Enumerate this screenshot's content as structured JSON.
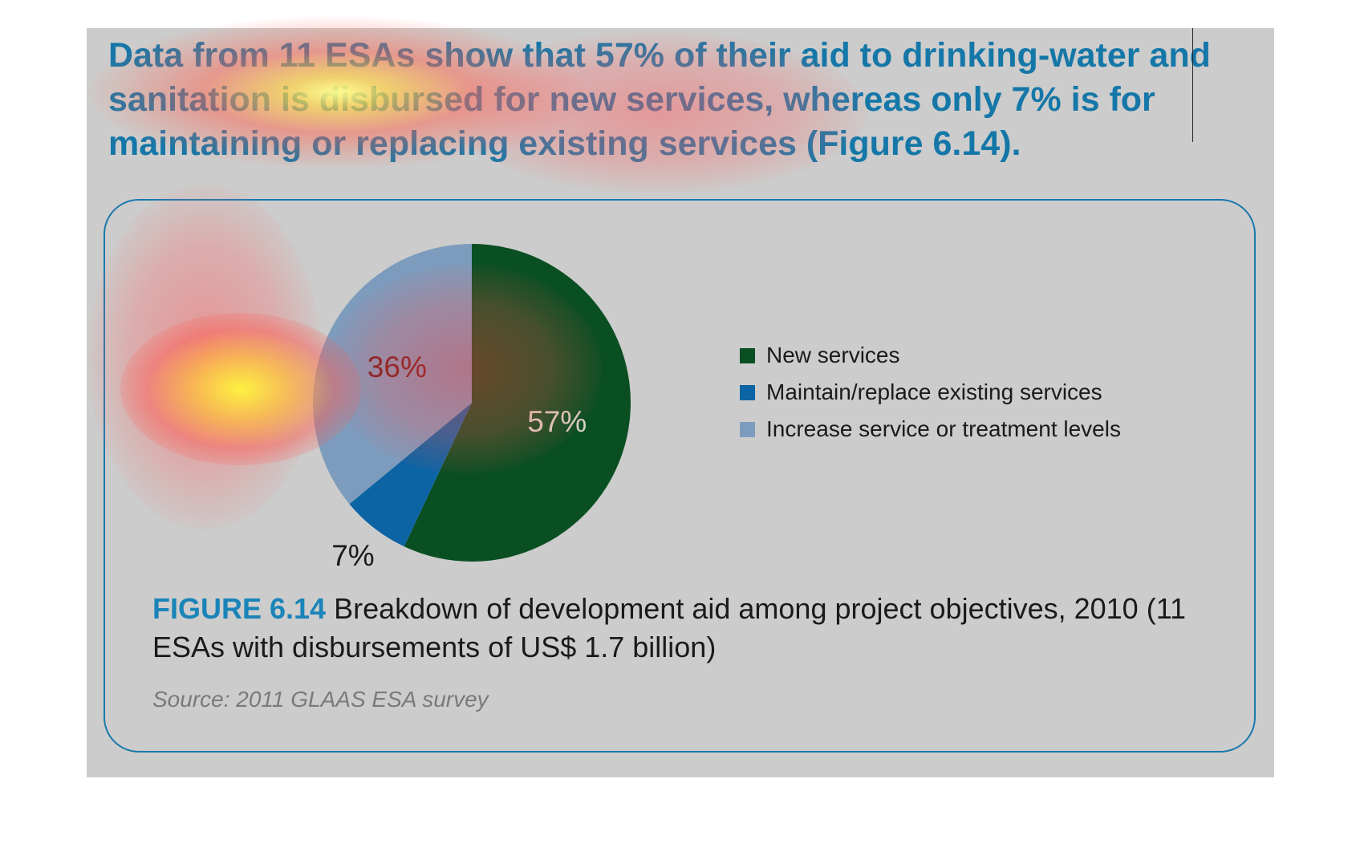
{
  "headline": "Data from 11 ESAs show that 57% of their aid to drinking-water and sanitation is disbursed for new services, whereas only 7% is for maintaining or replacing existing services (Figure 6.14).",
  "figure": {
    "tag": "FIGURE 6.14",
    "caption": " Breakdown of development aid among project objectives, 2010 (11 ESAs with disbursements of US$ 1.7 billion)",
    "source": "Source: 2011 GLAAS ESA survey"
  },
  "chart_data": {
    "type": "pie",
    "categories": [
      "New services",
      "Maintain/replace existing services",
      "Increase service or treatment levels"
    ],
    "values": [
      57,
      7,
      36
    ],
    "value_labels": [
      "57%",
      "7%",
      "36%"
    ],
    "colors": [
      "#0a4f22",
      "#0d64a4",
      "#7d9cbd"
    ],
    "legend_position": "right",
    "legend": [
      {
        "label": "New services",
        "color": "#0a4f22"
      },
      {
        "label": "Maintain/replace existing services",
        "color": "#0d64a4"
      },
      {
        "label": "Increase service or treatment levels",
        "color": "#7d9cbd"
      }
    ]
  },
  "colors": {
    "panel_background": "#cccccc",
    "accent": "#1577a8",
    "figure_border": "#1a78ad"
  }
}
